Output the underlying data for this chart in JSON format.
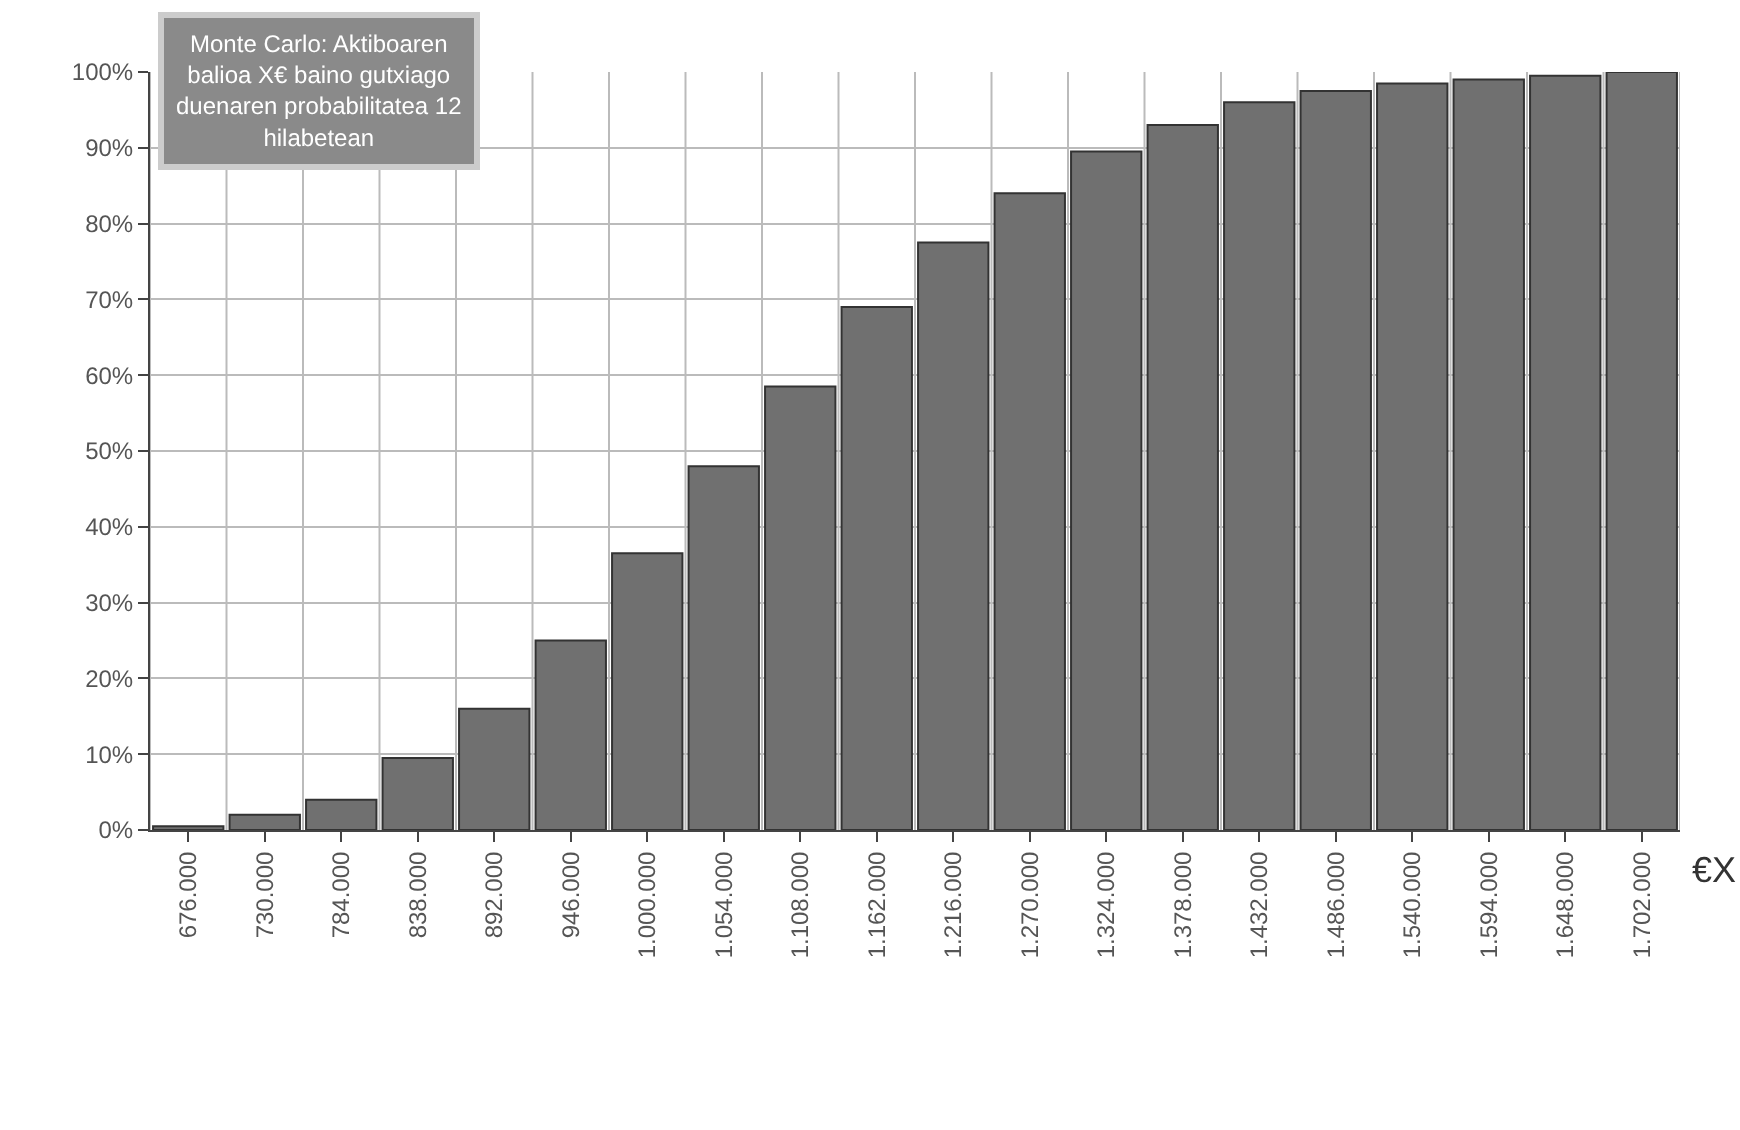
{
  "chart_data": {
    "type": "bar",
    "title": "Monte Carlo: Aktiboaren balioa X€ baino gutxiago duenaren probabilitatea 12 hilabetean",
    "xlabel": "€X",
    "categories": [
      "676.000",
      "730.000",
      "784.000",
      "838.000",
      "892.000",
      "946.000",
      "1.000.000",
      "1.054.000",
      "1.108.000",
      "1.162.000",
      "1.216.000",
      "1.270.000",
      "1.324.000",
      "1.378.000",
      "1.432.000",
      "1.486.000",
      "1.540.000",
      "1.594.000",
      "1.648.000",
      "1.702.000"
    ],
    "values": [
      0.5,
      2,
      4,
      9.5,
      16,
      25,
      36.5,
      48,
      58.5,
      69,
      77.5,
      84,
      89.5,
      93,
      96,
      97.5,
      98.5,
      99,
      99.5,
      100
    ],
    "color": "#707070",
    "ylim": [
      0,
      100
    ],
    "yticks": [
      {
        "value": 0,
        "label": "0%"
      },
      {
        "value": 10,
        "label": "10%"
      },
      {
        "value": 20,
        "label": "20%"
      },
      {
        "value": 30,
        "label": "30%"
      },
      {
        "value": 40,
        "label": "40%"
      },
      {
        "value": 50,
        "label": "50%"
      },
      {
        "value": 60,
        "label": "60%"
      },
      {
        "value": 70,
        "label": "70%"
      },
      {
        "value": 80,
        "label": "80%"
      },
      {
        "value": 90,
        "label": "90%"
      },
      {
        "value": 100,
        "label": "100%"
      }
    ],
    "grid": true
  }
}
